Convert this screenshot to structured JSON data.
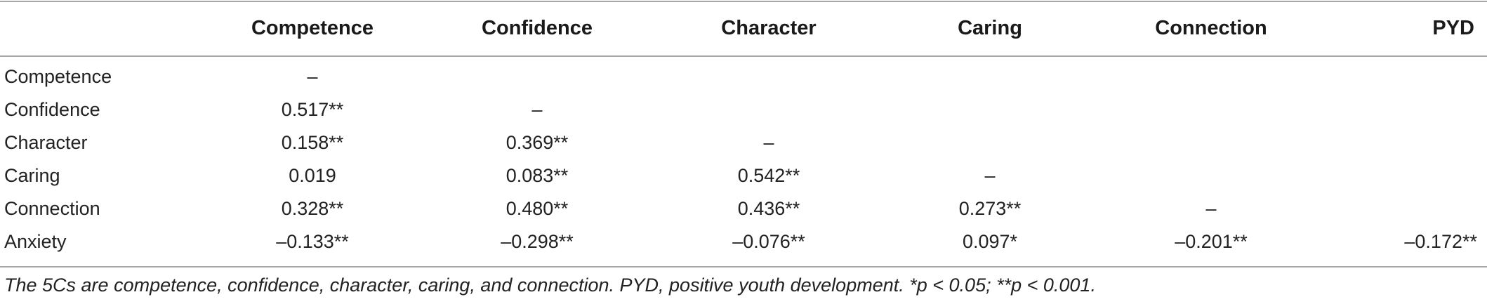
{
  "table": {
    "columns": [
      "",
      "Competence",
      "Confidence",
      "Character",
      "Caring",
      "Connection",
      "PYD"
    ],
    "rows": [
      {
        "label": "Competence",
        "cells": [
          "–",
          "",
          "",
          "",
          "",
          ""
        ]
      },
      {
        "label": "Confidence",
        "cells": [
          "0.517**",
          "–",
          "",
          "",
          "",
          ""
        ]
      },
      {
        "label": "Character",
        "cells": [
          "0.158**",
          "0.369**",
          "–",
          "",
          "",
          ""
        ]
      },
      {
        "label": "Caring",
        "cells": [
          "0.019",
          "0.083**",
          "0.542**",
          "–",
          "",
          ""
        ]
      },
      {
        "label": "Connection",
        "cells": [
          "0.328**",
          "0.480**",
          "0.436**",
          "0.273**",
          "–",
          ""
        ]
      },
      {
        "label": "Anxiety",
        "cells": [
          "–0.133**",
          "–0.298**",
          "–0.076**",
          "0.097*",
          "–0.201**",
          "–0.172**"
        ]
      }
    ]
  },
  "footnote": "The 5Cs are competence, confidence, character, caring, and connection. PYD, positive youth development. *p < 0.05; **p < 0.001."
}
